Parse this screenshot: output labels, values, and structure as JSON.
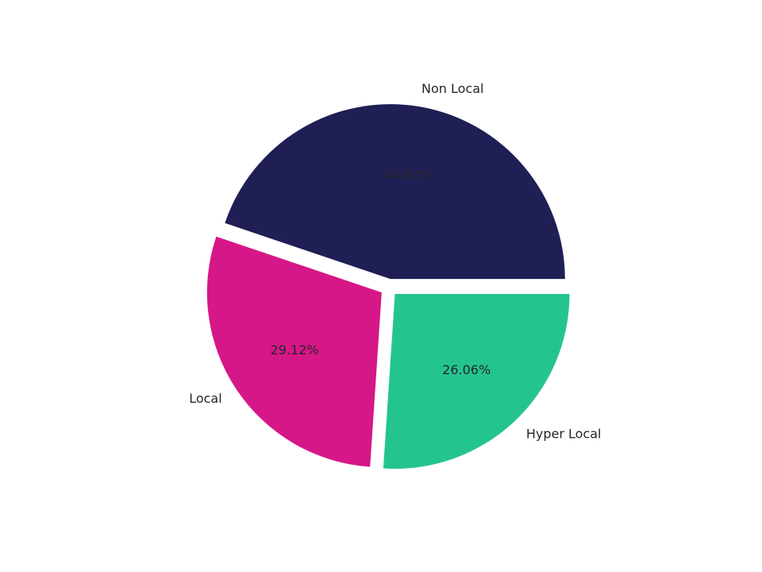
{
  "chart_data": {
    "type": "pie",
    "categories": [
      "Non Local",
      "Local",
      "Hyper Local"
    ],
    "values": [
      44.82,
      29.12,
      26.06
    ],
    "value_labels": [
      "44.82%",
      "29.12%",
      "26.06%"
    ],
    "colors": [
      "#1f1f55",
      "#d61788",
      "#24c491"
    ],
    "explode": true
  }
}
